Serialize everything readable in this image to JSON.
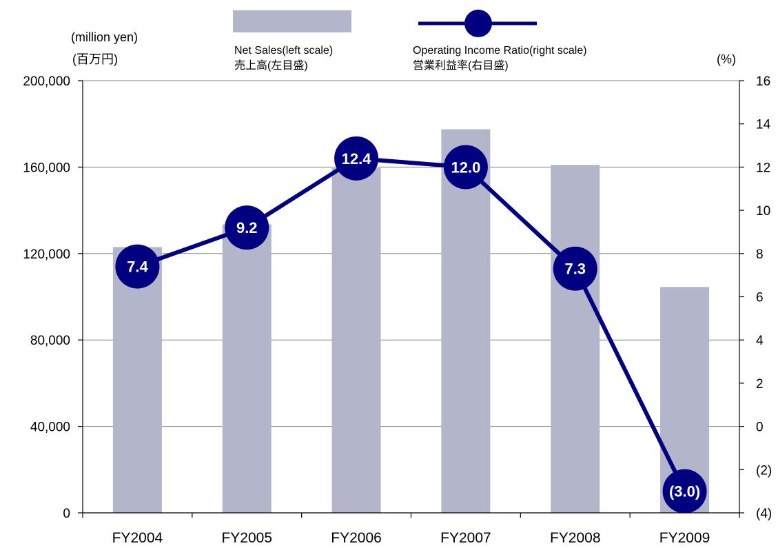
{
  "colors": {
    "bar": "#b3b5cb",
    "line": "#000080",
    "axis": "#000000",
    "grid": "#808080",
    "label_text": "#ffffff"
  },
  "legend": {
    "bar_label_en": "Net Sales(left scale)",
    "bar_label_jp": "売上高(左目盛)",
    "line_label_en": "Operating Income Ratio(right scale)",
    "line_label_jp": "営業利益率(右目盛)"
  },
  "left_unit": {
    "en": "(million yen)",
    "jp": "(百万円)"
  },
  "right_unit": "(%)",
  "chart_data": {
    "type": "bar+line",
    "categories": [
      "FY2004",
      "FY2005",
      "FY2006",
      "FY2007",
      "FY2008",
      "FY2009"
    ],
    "series": [
      {
        "name": "Net Sales(left scale)",
        "type": "bar",
        "axis": "left",
        "values": [
          123000,
          133500,
          159500,
          177500,
          161000,
          104500
        ]
      },
      {
        "name": "Operating Income Ratio(right scale)",
        "type": "line",
        "axis": "right",
        "values": [
          7.4,
          9.2,
          12.4,
          12.0,
          7.3,
          -3.0
        ],
        "labels": [
          "7.4",
          "9.2",
          "12.4",
          "12.0",
          "7.3",
          "(3.0)"
        ]
      }
    ],
    "left_axis": {
      "ylim": [
        0,
        200000
      ],
      "ticks": [
        0,
        40000,
        80000,
        120000,
        160000,
        200000
      ],
      "tick_labels": [
        "0",
        "40,000",
        "80,000",
        "120,000",
        "160,000",
        "200,000"
      ]
    },
    "right_axis": {
      "ylim": [
        -4,
        16
      ],
      "ticks": [
        -4,
        -2,
        0,
        2,
        4,
        6,
        8,
        10,
        12,
        14,
        16
      ],
      "tick_labels": [
        "(4)",
        "(2)",
        "0",
        "2",
        "4",
        "6",
        "8",
        "10",
        "12",
        "14",
        "16"
      ]
    },
    "grid": true,
    "legend_position": "top"
  }
}
